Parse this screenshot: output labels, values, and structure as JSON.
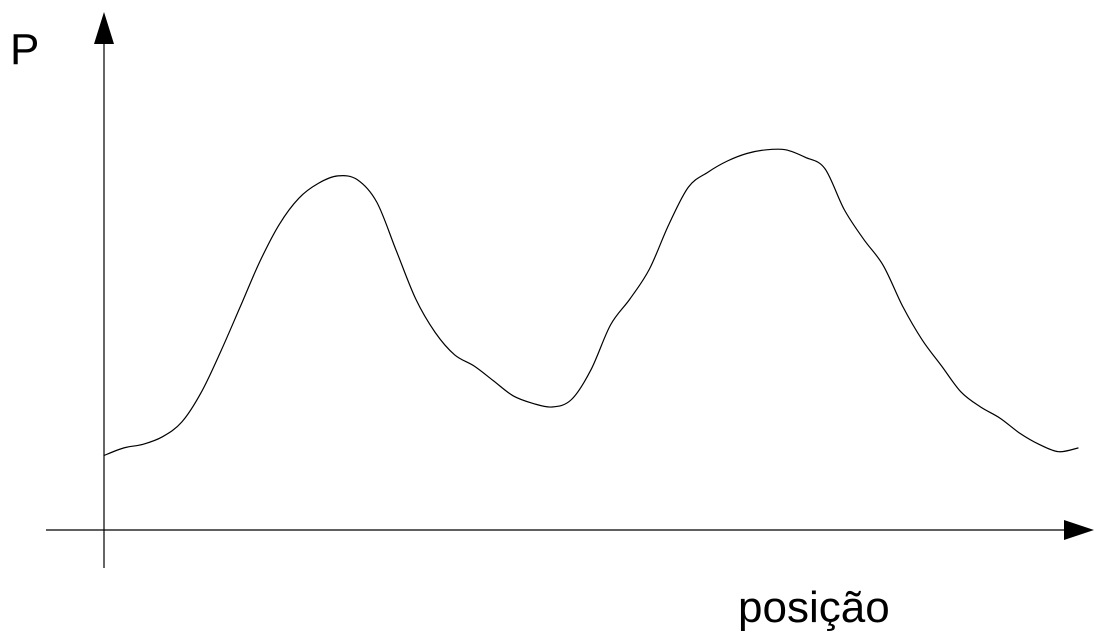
{
  "chart_data": {
    "type": "line",
    "title": "",
    "xlabel": "posição",
    "ylabel": "P",
    "xticks": [],
    "yticks": [],
    "grid": false,
    "series": [
      {
        "x": [
          0,
          2,
          4,
          6,
          8,
          10,
          12,
          14,
          16,
          18,
          20,
          22,
          24,
          26,
          28,
          30,
          32,
          34,
          36,
          38,
          40,
          42,
          44,
          46,
          48,
          50,
          52,
          54,
          56,
          58,
          60,
          62,
          64,
          66,
          68,
          70,
          72,
          74,
          76,
          78,
          80,
          82,
          84,
          86,
          88,
          90,
          92,
          94,
          96,
          98,
          100
        ],
        "y": [
          20,
          22,
          23,
          25,
          29,
          37,
          48,
          60,
          72,
          82,
          89,
          93,
          95,
          94,
          88,
          75,
          62,
          53,
          47,
          44,
          40,
          36,
          34,
          33,
          35,
          43,
          55,
          62,
          70,
          82,
          92,
          96,
          99,
          101,
          102,
          102,
          100,
          97,
          86,
          78,
          71,
          60,
          51,
          44,
          37,
          33,
          30,
          26,
          23,
          21,
          22
        ]
      }
    ],
    "colors": {
      "line": "#000000",
      "background": "#ffffff"
    }
  }
}
